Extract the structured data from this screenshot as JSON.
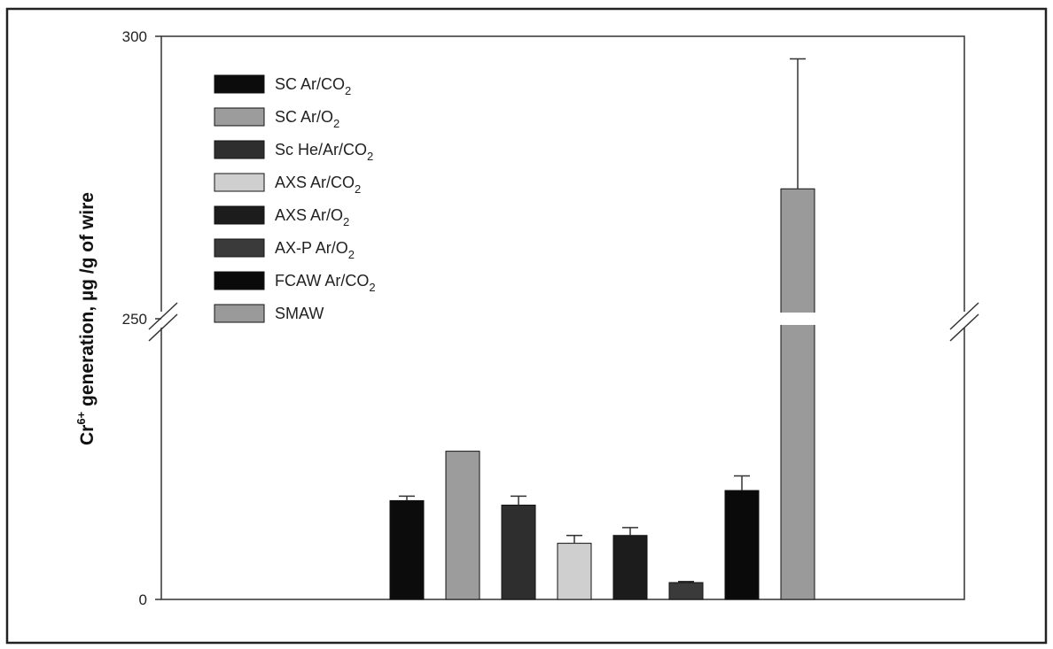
{
  "chart_data": {
    "type": "bar",
    "title": "",
    "xlabel": "",
    "ylabel_prefix": "Cr",
    "ylabel_sup": "6+",
    "ylabel_suffix": " generation, µg /g of wire",
    "axis_break": true,
    "ylim_lower": [
      0,
      250
    ],
    "ylim_upper": [
      250,
      300
    ],
    "yticks": [
      "0",
      "250",
      "300"
    ],
    "legend_position": "top-left",
    "series": [
      {
        "name": "SC Ar/CO",
        "sub": "2",
        "value": 88,
        "error": 4,
        "color": "#0c0c0c"
      },
      {
        "name": "SC Ar/O",
        "sub": "2",
        "value": 132,
        "error": 0,
        "color": "#9c9c9c"
      },
      {
        "name": "Sc He/Ar/CO",
        "sub": "2",
        "value": 84,
        "error": 8,
        "color": "#2e2e2e"
      },
      {
        "name": "AXS Ar/CO",
        "sub": "2",
        "value": 50,
        "error": 7,
        "color": "#cfcfcf"
      },
      {
        "name": "AXS Ar/O",
        "sub": "2",
        "value": 57,
        "error": 7,
        "color": "#1c1c1c"
      },
      {
        "name": "AX-P Ar/O",
        "sub": "2",
        "value": 15,
        "error": 1,
        "color": "#3a3a3a"
      },
      {
        "name": "FCAW Ar/CO",
        "sub": "2",
        "value": 97,
        "error": 13,
        "color": "#0a0a0a"
      },
      {
        "name": "SMAW",
        "sub": "",
        "value": 273,
        "error": 23,
        "color": "#9a9a9a"
      }
    ]
  }
}
